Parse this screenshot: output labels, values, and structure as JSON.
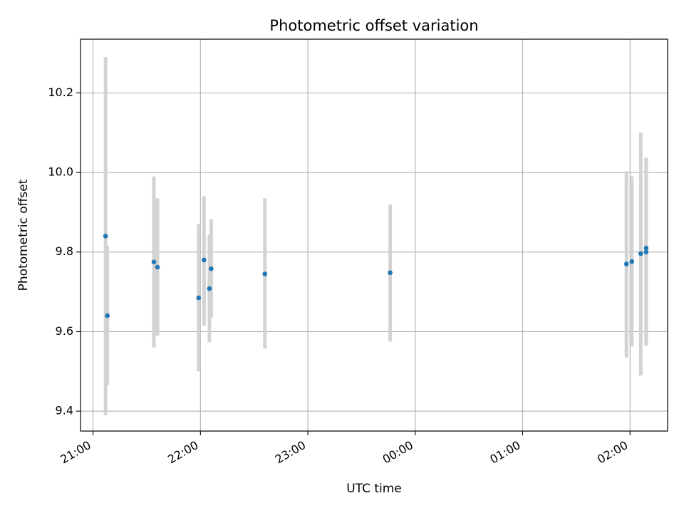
{
  "chart_data": {
    "type": "scatter",
    "title": "Photometric offset variation",
    "xlabel": "UTC time",
    "ylabel": "Photometric offset",
    "xlim": [
      "20:53",
      "02:21"
    ],
    "ylim": [
      9.35,
      10.335
    ],
    "x_ticks": [
      "21:00",
      "22:00",
      "23:00",
      "00:00",
      "01:00",
      "02:00"
    ],
    "y_ticks": [
      9.4,
      9.6,
      9.8,
      10.0,
      10.2
    ],
    "y_tick_labels": [
      "9.4",
      "9.6",
      "9.8",
      "10.0",
      "10.2"
    ],
    "grid": true,
    "colors": {
      "marker": "#1f77b4",
      "errorbar": "#d3d3d3",
      "grid": "#b0b0b0"
    },
    "points": [
      {
        "time": "21:07",
        "y": 9.84,
        "err_low": 9.39,
        "err_high": 10.29
      },
      {
        "time": "21:08",
        "y": 9.64,
        "err_low": 9.465,
        "err_high": 9.815
      },
      {
        "time": "21:34",
        "y": 9.775,
        "err_low": 9.56,
        "err_high": 9.99
      },
      {
        "time": "21:36",
        "y": 9.762,
        "err_low": 9.59,
        "err_high": 9.935
      },
      {
        "time": "21:59",
        "y": 9.685,
        "err_low": 9.5,
        "err_high": 9.87
      },
      {
        "time": "22:02",
        "y": 9.78,
        "err_low": 9.615,
        "err_high": 9.94
      },
      {
        "time": "22:05",
        "y": 9.708,
        "err_low": 9.573,
        "err_high": 9.843
      },
      {
        "time": "22:06",
        "y": 9.758,
        "err_low": 9.635,
        "err_high": 9.883
      },
      {
        "time": "22:36",
        "y": 9.745,
        "err_low": 9.557,
        "err_high": 9.935
      },
      {
        "time": "23:46",
        "y": 9.748,
        "err_low": 9.575,
        "err_high": 9.92
      },
      {
        "time": "01:58",
        "y": 9.77,
        "err_low": 9.535,
        "err_high": 10.003
      },
      {
        "time": "02:01",
        "y": 9.776,
        "err_low": 9.563,
        "err_high": 9.99
      },
      {
        "time": "02:06",
        "y": 9.796,
        "err_low": 9.49,
        "err_high": 10.1
      },
      {
        "time": "02:09",
        "y": 9.8,
        "err_low": 9.565,
        "err_high": 10.037
      },
      {
        "time": "02:09",
        "y": 9.81,
        "err_low": 9.585,
        "err_high": 10.03
      }
    ]
  }
}
